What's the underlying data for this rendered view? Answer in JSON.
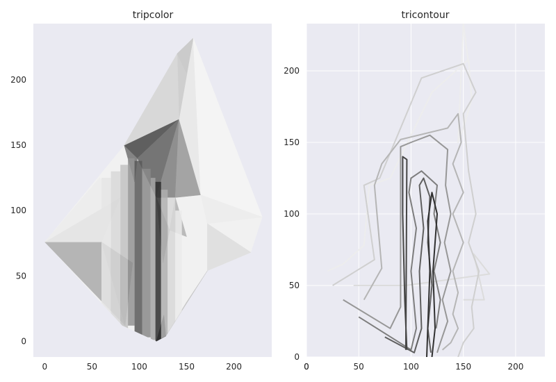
{
  "chart_data": [
    {
      "type": "heatmap",
      "title": "tripcolor",
      "xlim": [
        -12,
        240
      ],
      "ylim": [
        -12,
        243
      ],
      "xticks": [
        0,
        50,
        100,
        150,
        200
      ],
      "yticks": [
        0,
        50,
        100,
        150,
        200
      ],
      "grid": false,
      "hull": [
        [
          0,
          76
        ],
        [
          82,
          12
        ],
        [
          118,
          0
        ],
        [
          128,
          4
        ],
        [
          172,
          54
        ],
        [
          218,
          68
        ],
        [
          230,
          95
        ],
        [
          157,
          232
        ],
        [
          140,
          220
        ],
        [
          84,
          150
        ]
      ],
      "facets": [
        {
          "pts": [
            [
              0,
              76
            ],
            [
              85,
              12
            ],
            [
              60,
              76
            ]
          ],
          "value": 0.32
        },
        {
          "pts": [
            [
              0,
              76
            ],
            [
              60,
              76
            ],
            [
              80,
              110
            ]
          ],
          "value": 0.1
        },
        {
          "pts": [
            [
              0,
              76
            ],
            [
              80,
              110
            ],
            [
              58,
              125
            ]
          ],
          "value": 0.06
        },
        {
          "pts": [
            [
              60,
              76
            ],
            [
              85,
              12
            ],
            [
              93,
              60
            ]
          ],
          "value": 0.45
        },
        {
          "pts": [
            [
              84,
              150
            ],
            [
              98,
              140
            ],
            [
              95,
              122
            ]
          ],
          "value": 0.55
        },
        {
          "pts": [
            [
              84,
              150
            ],
            [
              142,
              170
            ],
            [
              98,
              140
            ]
          ],
          "value": 0.72
        },
        {
          "pts": [
            [
              98,
              140
            ],
            [
              142,
              170
            ],
            [
              118,
              110
            ]
          ],
          "value": 0.62
        },
        {
          "pts": [
            [
              142,
              170
            ],
            [
              138,
              110
            ],
            [
              118,
              110
            ]
          ],
          "value": 0.5
        },
        {
          "pts": [
            [
              142,
              170
            ],
            [
              165,
              112
            ],
            [
              138,
              110
            ]
          ],
          "value": 0.4
        },
        {
          "pts": [
            [
              142,
              170
            ],
            [
              157,
              232
            ],
            [
              165,
              112
            ]
          ],
          "value": 0.08
        },
        {
          "pts": [
            [
              142,
              170
            ],
            [
              140,
              220
            ],
            [
              157,
              232
            ]
          ],
          "value": 0.2
        },
        {
          "pts": [
            [
              84,
              150
            ],
            [
              140,
              220
            ],
            [
              142,
              170
            ]
          ],
          "value": 0.16
        },
        {
          "pts": [
            [
              140,
              220
            ],
            [
              157,
              232
            ],
            [
              150,
              205
            ]
          ],
          "value": 0.22
        },
        {
          "pts": [
            [
              157,
              232
            ],
            [
              230,
              95
            ],
            [
              165,
              112
            ]
          ],
          "value": 0.03
        },
        {
          "pts": [
            [
              165,
              112
            ],
            [
              230,
              95
            ],
            [
              172,
              90
            ]
          ],
          "value": 0.06
        },
        {
          "pts": [
            [
              172,
              54
            ],
            [
              218,
              68
            ],
            [
              172,
              90
            ]
          ],
          "value": 0.12
        },
        {
          "pts": [
            [
              128,
              4
            ],
            [
              172,
              54
            ],
            [
              150,
              30
            ]
          ],
          "value": 0.24
        },
        {
          "pts": [
            [
              118,
              0
            ],
            [
              128,
              4
            ],
            [
              126,
              20
            ]
          ],
          "value": 0.85
        },
        {
          "pts": [
            [
              138,
              110
            ],
            [
              150,
              80
            ],
            [
              132,
              85
            ]
          ],
          "value": 0.3
        },
        {
          "pts": [
            [
              118,
              110
            ],
            [
              132,
              85
            ],
            [
              125,
              60
            ]
          ],
          "value": 0.42
        }
      ],
      "columns": [
        {
          "x": [
            60,
            70
          ],
          "y": [
            0,
            125
          ],
          "value": 0.1
        },
        {
          "x": [
            70,
            80
          ],
          "y": [
            0,
            130
          ],
          "value": 0.16
        },
        {
          "x": [
            80,
            88
          ],
          "y": [
            0,
            135
          ],
          "value": 0.26
        },
        {
          "x": [
            88,
            95
          ],
          "y": [
            12,
            140
          ],
          "value": 0.48
        },
        {
          "x": [
            95,
            103
          ],
          "y": [
            5,
            138
          ],
          "value": 0.75
        },
        {
          "x": [
            103,
            112
          ],
          "y": [
            3,
            132
          ],
          "value": 0.52
        },
        {
          "x": [
            112,
            117
          ],
          "y": [
            1,
            125
          ],
          "value": 0.4
        },
        {
          "x": [
            117,
            123
          ],
          "y": [
            0,
            122
          ],
          "value": 0.95
        },
        {
          "x": [
            123,
            130
          ],
          "y": [
            2,
            116
          ],
          "value": 0.35
        },
        {
          "x": [
            130,
            138
          ],
          "y": [
            6,
            110
          ],
          "value": 0.16
        },
        {
          "x": [
            138,
            145
          ],
          "y": [
            10,
            100
          ],
          "value": 0.07
        }
      ]
    },
    {
      "type": "line",
      "title": "tricontour",
      "xlim": [
        0,
        228
      ],
      "ylim": [
        0,
        233
      ],
      "xticks": [
        0,
        50,
        100,
        150,
        200
      ],
      "yticks": [
        0,
        50,
        100,
        150,
        200
      ],
      "grid": true,
      "series": [
        {
          "level": 0.06,
          "points": [
            [
              20,
              60
            ],
            [
              35,
              65
            ],
            [
              55,
              78
            ],
            [
              60,
              120
            ],
            [
              80,
              125
            ],
            [
              120,
              185
            ],
            [
              155,
              208
            ],
            [
              158,
              180
            ],
            [
              150,
              160
            ],
            [
              145,
              150
            ],
            [
              150,
              233
            ],
            [
              155,
              205
            ]
          ]
        },
        {
          "level": 0.14,
          "points": [
            [
              45,
              50
            ],
            [
              95,
              50
            ],
            [
              175,
              58
            ],
            [
              160,
              72
            ],
            [
              170,
              40
            ],
            [
              150,
              40
            ]
          ]
        },
        {
          "level": 0.2,
          "points": [
            [
              25,
              50
            ],
            [
              65,
              68
            ],
            [
              55,
              120
            ],
            [
              70,
              125
            ],
            [
              110,
              195
            ],
            [
              150,
              205
            ],
            [
              162,
              185
            ],
            [
              150,
              170
            ],
            [
              155,
              130
            ],
            [
              162,
              100
            ],
            [
              155,
              80
            ],
            [
              165,
              60
            ],
            [
              158,
              35
            ],
            [
              160,
              20
            ],
            [
              150,
              10
            ],
            [
              145,
              0
            ]
          ]
        },
        {
          "level": 0.32,
          "points": [
            [
              55,
              40
            ],
            [
              72,
              62
            ],
            [
              65,
              120
            ],
            [
              72,
              135
            ],
            [
              90,
              152
            ],
            [
              135,
              160
            ],
            [
              145,
              170
            ],
            [
              148,
              150
            ],
            [
              140,
              135
            ],
            [
              150,
              115
            ],
            [
              140,
              100
            ],
            [
              150,
              80
            ],
            [
              140,
              60
            ],
            [
              145,
              45
            ],
            [
              140,
              30
            ],
            [
              145,
              20
            ],
            [
              138,
              10
            ],
            [
              130,
              5
            ]
          ]
        },
        {
          "level": 0.46,
          "points": [
            [
              35,
              40
            ],
            [
              80,
              20
            ],
            [
              90,
              35
            ],
            [
              90,
              147
            ],
            [
              100,
              150
            ],
            [
              118,
              155
            ],
            [
              135,
              145
            ],
            [
              133,
              120
            ],
            [
              138,
              100
            ],
            [
              132,
              80
            ],
            [
              138,
              60
            ],
            [
              130,
              40
            ],
            [
              135,
              25
            ],
            [
              128,
              10
            ],
            [
              125,
              3
            ]
          ]
        },
        {
          "level": 0.58,
          "points": [
            [
              50,
              28
            ],
            [
              100,
              5
            ],
            [
              105,
              20
            ],
            [
              100,
              60
            ],
            [
              105,
              90
            ],
            [
              98,
              115
            ],
            [
              100,
              125
            ],
            [
              110,
              130
            ],
            [
              125,
              120
            ],
            [
              122,
              100
            ],
            [
              128,
              80
            ],
            [
              122,
              60
            ],
            [
              128,
              40
            ],
            [
              124,
              20
            ]
          ]
        },
        {
          "level": 0.72,
          "points": [
            [
              75,
              14
            ],
            [
              103,
              3
            ],
            [
              110,
              20
            ],
            [
              108,
              60
            ],
            [
              112,
              90
            ],
            [
              108,
              120
            ],
            [
              112,
              125
            ],
            [
              118,
              112
            ],
            [
              116,
              80
            ],
            [
              120,
              50
            ],
            [
              116,
              20
            ],
            [
              119,
              3
            ]
          ]
        },
        {
          "level": 0.84,
          "points": [
            [
              95,
              5
            ],
            [
              96,
              138
            ],
            [
              92,
              140
            ],
            [
              92,
              100
            ],
            [
              94,
              40
            ],
            [
              96,
              5
            ]
          ]
        },
        {
          "level": 0.94,
          "points": [
            [
              115,
              0
            ],
            [
              118,
              60
            ],
            [
              116,
              95
            ],
            [
              120,
              115
            ],
            [
              125,
              100
            ],
            [
              121,
              60
            ],
            [
              123,
              20
            ],
            [
              120,
              0
            ]
          ]
        }
      ]
    }
  ]
}
